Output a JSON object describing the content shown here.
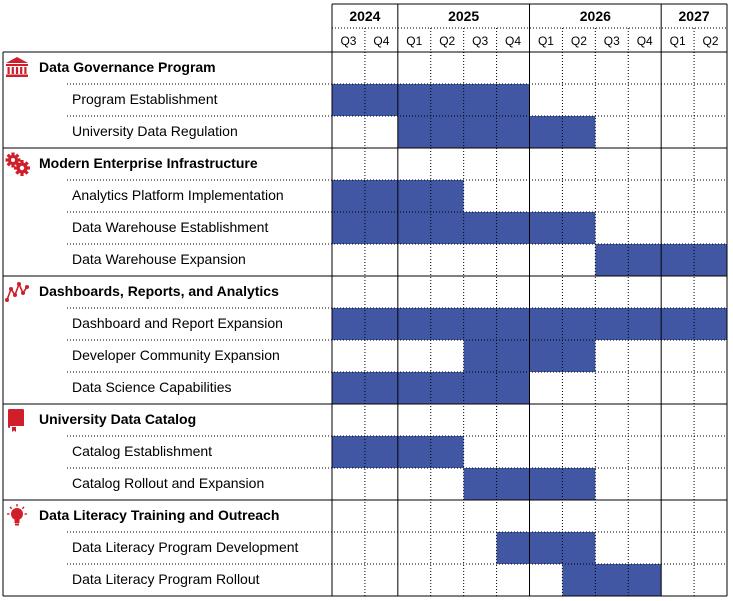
{
  "colors": {
    "bar": "#4157a3",
    "icon": "#d01f2a",
    "grid": "#000000"
  },
  "chart_data": {
    "type": "gantt",
    "years": [
      {
        "label": "2024",
        "quarters": [
          "Q3",
          "Q4"
        ]
      },
      {
        "label": "2025",
        "quarters": [
          "Q1",
          "Q2",
          "Q3",
          "Q4"
        ]
      },
      {
        "label": "2026",
        "quarters": [
          "Q1",
          "Q2",
          "Q3",
          "Q4"
        ]
      },
      {
        "label": "2027",
        "quarters": [
          "Q1",
          "Q2"
        ]
      }
    ],
    "groups": [
      {
        "title": "Data Governance Program",
        "icon": "building-columns-icon",
        "tasks": [
          {
            "name": "Program Establishment",
            "start": "2024 Q3",
            "end": "2025 Q4"
          },
          {
            "name": "University Data Regulation",
            "start": "2025 Q1",
            "end": "2026 Q2"
          }
        ]
      },
      {
        "title": "Modern Enterprise Infrastructure",
        "icon": "gears-icon",
        "tasks": [
          {
            "name": "Analytics Platform Implementation",
            "start": "2024 Q3",
            "end": "2025 Q2"
          },
          {
            "name": "Data Warehouse Establishment",
            "start": "2024 Q3",
            "end": "2026 Q2"
          },
          {
            "name": "Data Warehouse Expansion",
            "start": "2026 Q3",
            "end": "2027 Q2"
          }
        ]
      },
      {
        "title": "Dashboards, Reports, and Analytics",
        "icon": "line-chart-icon",
        "tasks": [
          {
            "name": "Dashboard and Report Expansion",
            "start": "2024 Q3",
            "end": "2027 Q2"
          },
          {
            "name": "Developer Community Expansion",
            "start": "2025 Q3",
            "end": "2026 Q2"
          },
          {
            "name": "Data Science Capabilities",
            "start": "2024 Q3",
            "end": "2025 Q4"
          }
        ]
      },
      {
        "title": "University Data Catalog",
        "icon": "book-icon",
        "tasks": [
          {
            "name": "Catalog Establishment",
            "start": "2024 Q3",
            "end": "2025 Q2"
          },
          {
            "name": "Catalog Rollout and Expansion",
            "start": "2025 Q3",
            "end": "2026 Q2"
          }
        ]
      },
      {
        "title": "Data Literacy Training and Outreach",
        "icon": "lightbulb-icon",
        "tasks": [
          {
            "name": "Data Literacy Program Development",
            "start": "2025 Q4",
            "end": "2026 Q2"
          },
          {
            "name": "Data Literacy Program Rollout",
            "start": "2026 Q2",
            "end": "2026 Q4"
          }
        ]
      }
    ]
  }
}
